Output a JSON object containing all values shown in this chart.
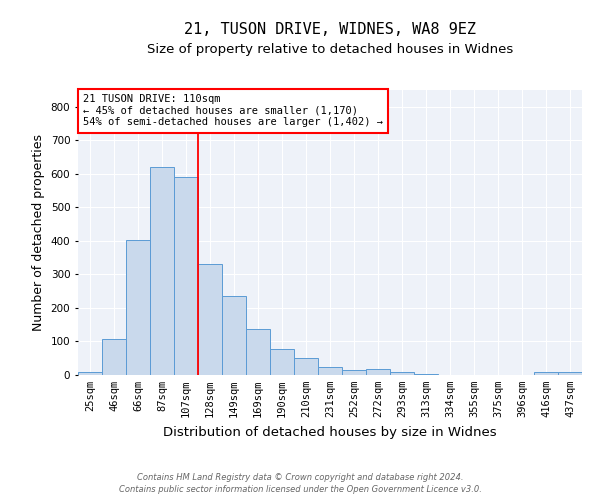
{
  "title1": "21, TUSON DRIVE, WIDNES, WA8 9EZ",
  "title2": "Size of property relative to detached houses in Widnes",
  "xlabel": "Distribution of detached houses by size in Widnes",
  "ylabel": "Number of detached properties",
  "categories": [
    "25sqm",
    "46sqm",
    "66sqm",
    "87sqm",
    "107sqm",
    "128sqm",
    "149sqm",
    "169sqm",
    "190sqm",
    "210sqm",
    "231sqm",
    "252sqm",
    "272sqm",
    "293sqm",
    "313sqm",
    "334sqm",
    "355sqm",
    "375sqm",
    "396sqm",
    "416sqm",
    "437sqm"
  ],
  "values": [
    8,
    106,
    403,
    619,
    590,
    330,
    237,
    136,
    79,
    51,
    24,
    16,
    18,
    8,
    4,
    1,
    0,
    0,
    0,
    8,
    10
  ],
  "bar_color": "#c9d9ec",
  "bar_edge_color": "#5b9bd5",
  "vline_color": "red",
  "vline_x_index": 4,
  "annotation_text": "21 TUSON DRIVE: 110sqm\n← 45% of detached houses are smaller (1,170)\n54% of semi-detached houses are larger (1,402) →",
  "annotation_box_color": "white",
  "annotation_box_edge_color": "red",
  "ylim": [
    0,
    850
  ],
  "yticks": [
    0,
    100,
    200,
    300,
    400,
    500,
    600,
    700,
    800
  ],
  "footnote1": "Contains HM Land Registry data © Crown copyright and database right 2024.",
  "footnote2": "Contains public sector information licensed under the Open Government Licence v3.0.",
  "bg_color": "#eef2f9",
  "title_fontsize": 11,
  "subtitle_fontsize": 9.5,
  "xlabel_fontsize": 9.5,
  "ylabel_fontsize": 9,
  "tick_fontsize": 7.5,
  "annot_fontsize": 7.5,
  "footnote_fontsize": 6
}
